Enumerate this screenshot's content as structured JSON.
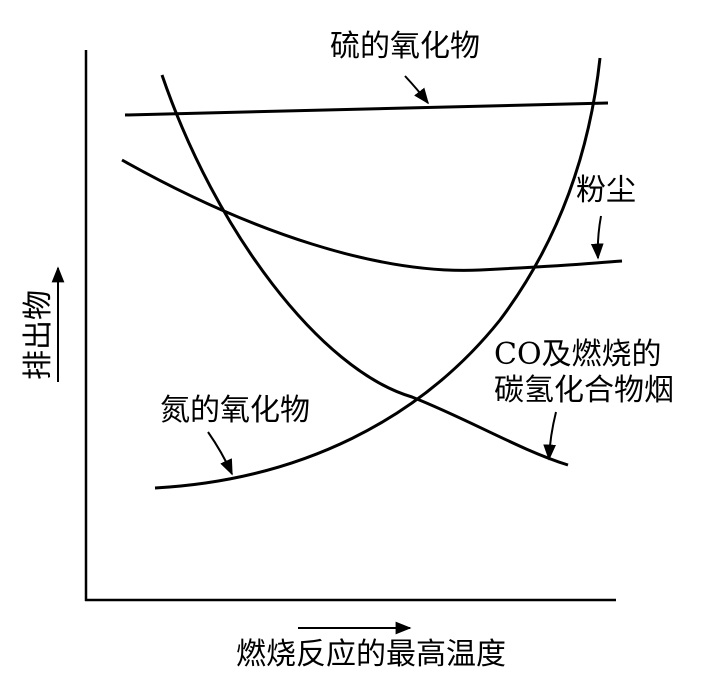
{
  "labels": {
    "sulfur_oxides": "硫的氧化物",
    "dust": "粉尘",
    "co_line1": "CO及燃烧的",
    "co_line2": "碳氢化合物烟",
    "nitrogen_oxides": "氮的氧化物"
  },
  "axes": {
    "y_label": "排出物",
    "x_label": "燃烧反应的最高温度"
  }
}
